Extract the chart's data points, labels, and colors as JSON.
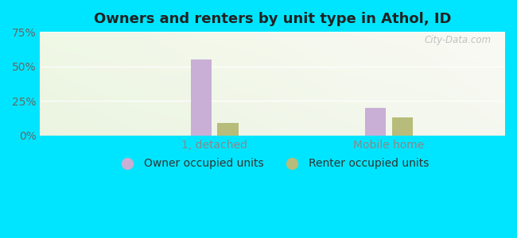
{
  "title": "Owners and renters by unit type in Athol, ID",
  "categories": [
    "1, detached",
    "Mobile home"
  ],
  "owner_values": [
    55.0,
    20.0
  ],
  "renter_values": [
    9.0,
    13.0
  ],
  "owner_color": "#c9aed6",
  "renter_color": "#b8bc7a",
  "ylim": [
    0,
    75
  ],
  "yticks": [
    0,
    25,
    50,
    75
  ],
  "yticklabels": [
    "0%",
    "25%",
    "50%",
    "75%"
  ],
  "bar_width": 0.18,
  "outer_bg": "#00e5ff",
  "watermark": "City-Data.com",
  "legend_labels": [
    "Owner occupied units",
    "Renter occupied units"
  ],
  "title_fontsize": 13,
  "tick_fontsize": 10,
  "legend_fontsize": 10,
  "bg_color_topleft": "#d4edc4",
  "bg_color_topright": "#eaf5e8",
  "bg_color_bottomleft": "#d8edcc",
  "bg_color_bottomright": "#f0f8ee"
}
